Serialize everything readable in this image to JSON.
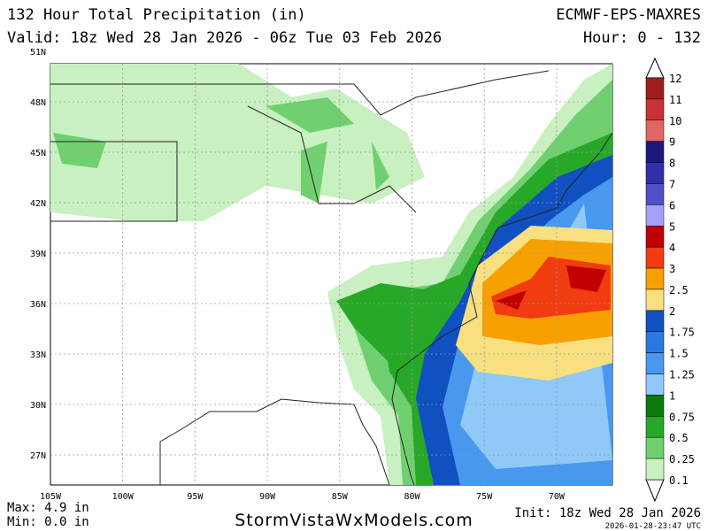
{
  "header": {
    "title": "132 Hour Total Precipitation (in)",
    "model": "ECMWF-EPS-MAXRES",
    "valid": "Valid: 18z Wed 28 Jan 2026 - 06z Tue 03 Feb 2026",
    "hour": "Hour: 0 - 132"
  },
  "lat_labels": [
    "51N",
    "48N",
    "45N",
    "42N",
    "39N",
    "36N",
    "33N",
    "30N",
    "27N"
  ],
  "lon_labels": [
    "105W",
    "100W",
    "95W",
    "90W",
    "85W",
    "80W",
    "75W",
    "70W"
  ],
  "legend": {
    "levels": [
      {
        "label": "12",
        "color": "#a01e1e"
      },
      {
        "label": "11",
        "color": "#c83232"
      },
      {
        "label": "10",
        "color": "#e06666"
      },
      {
        "label": "9",
        "color": "#1c1880"
      },
      {
        "label": "8",
        "color": "#3030a8"
      },
      {
        "label": "7",
        "color": "#5050c8"
      },
      {
        "label": "6",
        "color": "#a8a0f8"
      },
      {
        "label": "5",
        "color": "#c00000"
      },
      {
        "label": "4",
        "color": "#f03c10"
      },
      {
        "label": "3",
        "color": "#f8a000"
      },
      {
        "label": "2.5",
        "color": "#f8e080"
      },
      {
        "label": "2",
        "color": "#1050c0"
      },
      {
        "label": "1.75",
        "color": "#2878e0"
      },
      {
        "label": "1.5",
        "color": "#4898f0"
      },
      {
        "label": "1.25",
        "color": "#90c8f8"
      },
      {
        "label": "1",
        "color": "#0a780a"
      },
      {
        "label": "0.75",
        "color": "#28a828"
      },
      {
        "label": "0.5",
        "color": "#70d070"
      },
      {
        "label": "0.25",
        "color": "#c8f0c0"
      },
      {
        "label": "0.1"
      }
    ]
  },
  "footer": {
    "max": "Max: 4.9 in",
    "min": "Min: 0.0 in",
    "site": "StormVistaWxModels.com",
    "init": "Init: 18z Wed 28 Jan 2026",
    "timestamp": "2026-01-28-23:47 UTC"
  }
}
